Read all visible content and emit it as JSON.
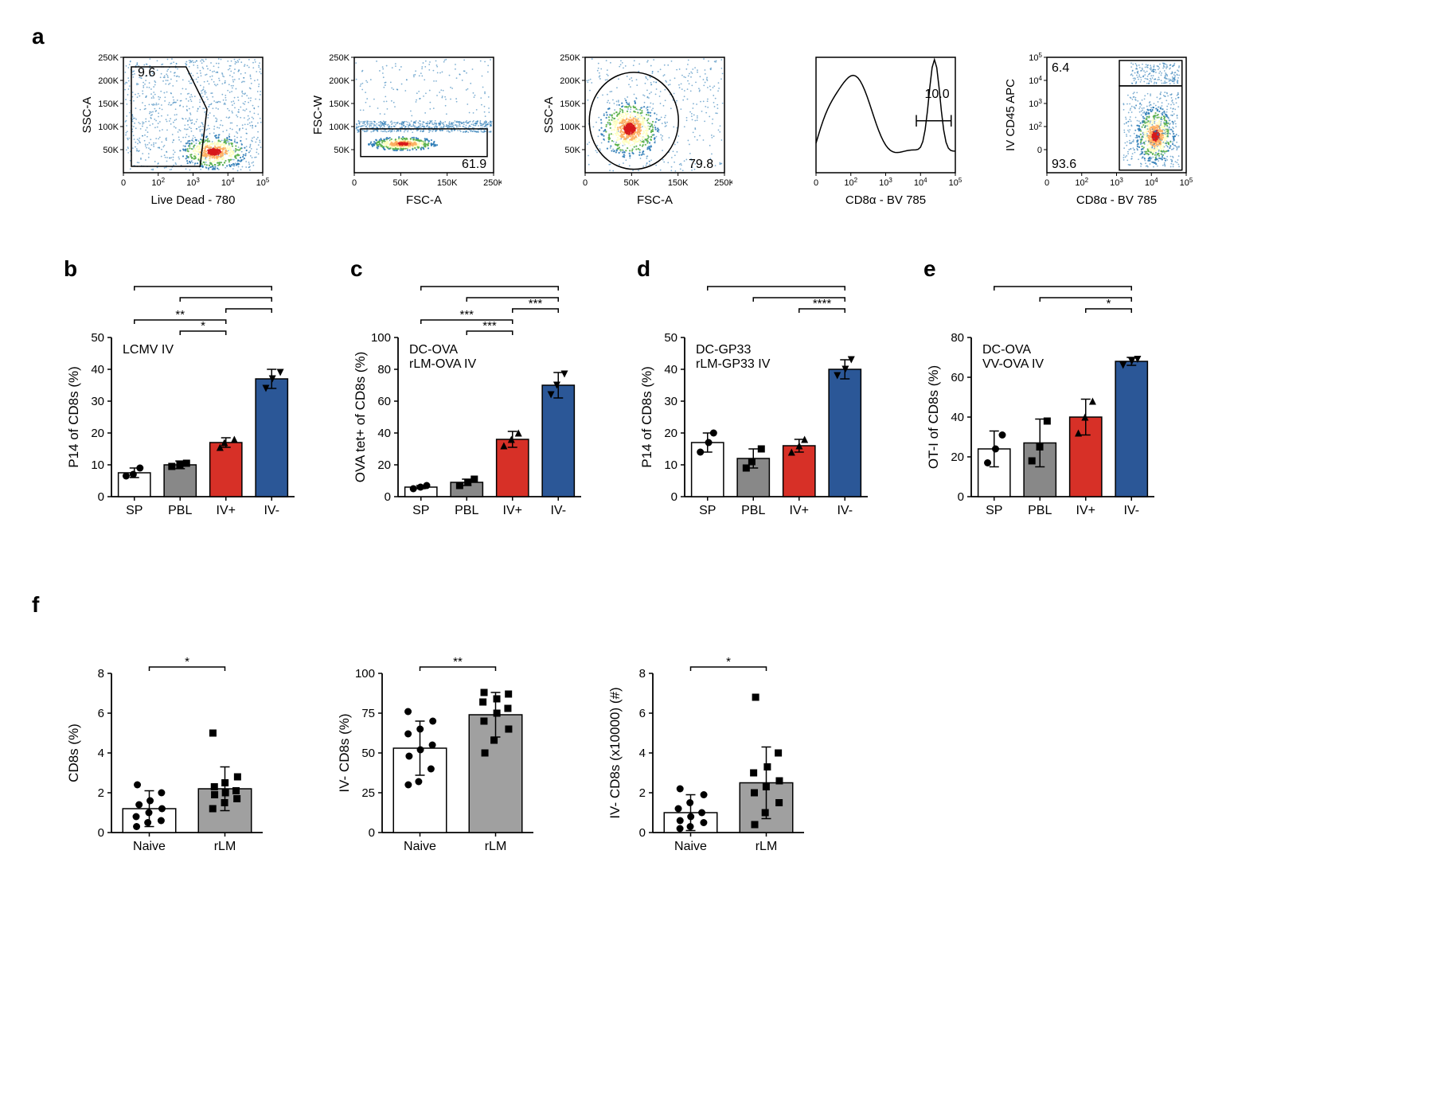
{
  "panels": {
    "a": {
      "label": "a",
      "plots": [
        {
          "type": "scatter-density",
          "xaxis": "Live Dead - 780",
          "yaxis": "SSC-A",
          "xticks": [
            "0",
            "10^2",
            "10^3",
            "10^4",
            "10^5"
          ],
          "yticks": [
            "50K",
            "100K",
            "150K",
            "200K",
            "250K"
          ],
          "gate_value": "9.6",
          "gate_pos": "top-left"
        },
        {
          "type": "scatter-density",
          "xaxis": "FSC-A",
          "yaxis": "FSC-W",
          "xticks": [
            "0",
            "50K",
            "150K",
            "250K"
          ],
          "yticks": [
            "50K",
            "100K",
            "150K",
            "200K",
            "250K"
          ],
          "gate_value": "61.9",
          "gate_pos": "bottom-right"
        },
        {
          "type": "scatter-density",
          "xaxis": "FSC-A",
          "yaxis": "SSC-A",
          "xticks": [
            "0",
            "50K",
            "150K",
            "250K"
          ],
          "yticks": [
            "50K",
            "100K",
            "150K",
            "200K",
            "250K"
          ],
          "gate_value": "79.8",
          "gate_pos": "bottom-right"
        },
        {
          "type": "histogram",
          "xaxis": "CD8α - BV 785",
          "yaxis": "",
          "xticks": [
            "0",
            "10^2",
            "10^3",
            "10^4",
            "10^5"
          ],
          "yticks": [],
          "gate_value": "10.0",
          "gate_pos": "right"
        },
        {
          "type": "scatter-density",
          "xaxis": "CD8α - BV 785",
          "yaxis": "IV CD45 APC",
          "xticks": [
            "0",
            "10^2",
            "10^3",
            "10^4",
            "10^5"
          ],
          "yticks": [
            "0",
            "10^2",
            "10^3",
            "10^4",
            "10^5"
          ],
          "gate_values": [
            "6.4",
            "93.6"
          ],
          "gate_pos": "two-box"
        }
      ]
    },
    "b": {
      "label": "b",
      "ylabel": "P14 of CD8s (%)",
      "title": "LCMV  IV",
      "yticks": [
        0,
        10,
        20,
        30,
        40,
        50
      ],
      "ymax": 50,
      "categories": [
        "SP",
        "PBL",
        "IV+",
        "IV-"
      ],
      "values": [
        7.5,
        10,
        17,
        37
      ],
      "errors": [
        1.5,
        1.2,
        1.5,
        3
      ],
      "colors": [
        "#ffffff",
        "#888888",
        "#d73027",
        "#2b5797"
      ],
      "points_shape": [
        "circle",
        "square",
        "triangle-up",
        "triangle-down"
      ],
      "points": [
        [
          6.5,
          7,
          9
        ],
        [
          9.5,
          10,
          10.5
        ],
        [
          15.5,
          17,
          18
        ],
        [
          34,
          37,
          39
        ]
      ],
      "sig": [
        {
          "from": 0,
          "to": 2,
          "level": 1,
          "text": "**"
        },
        {
          "from": 1,
          "to": 2,
          "level": 0,
          "text": "*"
        },
        {
          "from": 0,
          "to": 3,
          "level": 4,
          "text": "****"
        },
        {
          "from": 1,
          "to": 3,
          "level": 3,
          "text": ""
        },
        {
          "from": 2,
          "to": 3,
          "level": 2,
          "text": ""
        }
      ]
    },
    "c": {
      "label": "c",
      "ylabel": "OVA tet+ of CD8s (%)",
      "title": "DC-OVA\nrLM-OVA IV",
      "yticks": [
        0,
        20,
        40,
        60,
        80,
        100
      ],
      "ymax": 100,
      "categories": [
        "SP",
        "PBL",
        "IV+",
        "IV-"
      ],
      "values": [
        6,
        9,
        36,
        70
      ],
      "errors": [
        1,
        2,
        5,
        8
      ],
      "colors": [
        "#ffffff",
        "#888888",
        "#d73027",
        "#2b5797"
      ],
      "points_shape": [
        "circle",
        "square",
        "triangle-up",
        "triangle-down"
      ],
      "points": [
        [
          5,
          6,
          7
        ],
        [
          7,
          9,
          11
        ],
        [
          32,
          36,
          40
        ],
        [
          64,
          70,
          77
        ]
      ],
      "sig": [
        {
          "from": 0,
          "to": 2,
          "level": 1,
          "text": "***"
        },
        {
          "from": 1,
          "to": 2,
          "level": 0,
          "text": "***"
        },
        {
          "from": 0,
          "to": 3,
          "level": 4,
          "text": "****"
        },
        {
          "from": 1,
          "to": 3,
          "level": 3,
          "text": ""
        },
        {
          "from": 2,
          "to": 3,
          "level": 2,
          "text": "***"
        }
      ]
    },
    "d": {
      "label": "d",
      "ylabel": "P14 of CD8s (%)",
      "title": "DC-GP33\nrLM-GP33 IV",
      "yticks": [
        0,
        10,
        20,
        30,
        40,
        50
      ],
      "ymax": 50,
      "categories": [
        "SP",
        "PBL",
        "IV+",
        "IV-"
      ],
      "values": [
        17,
        12,
        16,
        40
      ],
      "errors": [
        3,
        3,
        2,
        3
      ],
      "colors": [
        "#ffffff",
        "#888888",
        "#d73027",
        "#2b5797"
      ],
      "points_shape": [
        "circle",
        "square",
        "triangle-up",
        "triangle-down"
      ],
      "points": [
        [
          14,
          17,
          20
        ],
        [
          9,
          11,
          15
        ],
        [
          14,
          16,
          18
        ],
        [
          38,
          40,
          43
        ]
      ],
      "sig": [
        {
          "from": 0,
          "to": 3,
          "level": 4,
          "text": "***"
        },
        {
          "from": 1,
          "to": 3,
          "level": 3,
          "text": ""
        },
        {
          "from": 2,
          "to": 3,
          "level": 2,
          "text": "****"
        }
      ]
    },
    "e": {
      "label": "e",
      "ylabel": "OT-I of CD8s (%)",
      "title": "DC-OVA\nVV-OVA IV",
      "yticks": [
        0,
        20,
        40,
        60,
        80
      ],
      "ymax": 80,
      "categories": [
        "SP",
        "PBL",
        "IV+",
        "IV-"
      ],
      "values": [
        24,
        27,
        40,
        68
      ],
      "errors": [
        9,
        12,
        9,
        2
      ],
      "colors": [
        "#ffffff",
        "#888888",
        "#d73027",
        "#2b5797"
      ],
      "points_shape": [
        "circle",
        "square",
        "triangle-up",
        "triangle-down"
      ],
      "points": [
        [
          17,
          24,
          31
        ],
        [
          18,
          25,
          38
        ],
        [
          32,
          40,
          48
        ],
        [
          66,
          68,
          69
        ]
      ],
      "sig": [
        {
          "from": 0,
          "to": 3,
          "level": 4,
          "text": "**"
        },
        {
          "from": 1,
          "to": 3,
          "level": 3,
          "text": ""
        },
        {
          "from": 2,
          "to": 3,
          "level": 2,
          "text": "*"
        }
      ]
    },
    "f": {
      "label": "f",
      "charts": [
        {
          "ylabel": "CD8s (%)",
          "yticks": [
            0,
            2,
            4,
            6,
            8
          ],
          "ymax": 8,
          "categories": [
            "Naive",
            "rLM"
          ],
          "values": [
            1.2,
            2.2
          ],
          "errors": [
            0.9,
            1.1
          ],
          "colors": [
            "#ffffff",
            "#a0a0a0"
          ],
          "points_shape": [
            "circle",
            "square"
          ],
          "points": [
            [
              0.3,
              0.5,
              0.6,
              0.8,
              1.0,
              1.2,
              1.4,
              1.6,
              2.0,
              2.4
            ],
            [
              1.2,
              1.5,
              1.7,
              1.9,
              2.0,
              2.1,
              2.3,
              2.5,
              2.8,
              5.0
            ]
          ],
          "sig": [
            {
              "from": 0,
              "to": 1,
              "level": 0,
              "text": "*"
            }
          ]
        },
        {
          "ylabel": "IV- CD8s (%)",
          "yticks": [
            0,
            25,
            50,
            75,
            100
          ],
          "ymax": 100,
          "categories": [
            "Naive",
            "rLM"
          ],
          "values": [
            53,
            74
          ],
          "errors": [
            17,
            14
          ],
          "colors": [
            "#ffffff",
            "#a0a0a0"
          ],
          "points_shape": [
            "circle",
            "square"
          ],
          "points": [
            [
              30,
              32,
              40,
              48,
              52,
              55,
              62,
              65,
              70,
              76
            ],
            [
              50,
              58,
              65,
              70,
              75,
              78,
              82,
              84,
              87,
              88
            ]
          ],
          "sig": [
            {
              "from": 0,
              "to": 1,
              "level": 0,
              "text": "**"
            }
          ]
        },
        {
          "ylabel": "IV- CD8s (x10000) (#)",
          "yticks": [
            0,
            2,
            4,
            6,
            8
          ],
          "ymax": 8,
          "categories": [
            "Naive",
            "rLM"
          ],
          "values": [
            1.0,
            2.5
          ],
          "errors": [
            0.9,
            1.8
          ],
          "colors": [
            "#ffffff",
            "#a0a0a0"
          ],
          "points_shape": [
            "circle",
            "square"
          ],
          "points": [
            [
              0.2,
              0.3,
              0.5,
              0.6,
              0.8,
              1.0,
              1.2,
              1.5,
              1.9,
              2.2
            ],
            [
              0.4,
              1.0,
              1.5,
              2.0,
              2.3,
              2.6,
              3.0,
              3.3,
              4.0,
              6.8
            ]
          ],
          "sig": [
            {
              "from": 0,
              "to": 1,
              "level": 0,
              "text": "*"
            }
          ]
        }
      ]
    }
  },
  "style": {
    "axis_color": "#000000",
    "bar_stroke": "#000000",
    "font_family": "Arial",
    "axis_fontsize": 18,
    "tick_fontsize": 14,
    "title_fontsize": 18
  }
}
